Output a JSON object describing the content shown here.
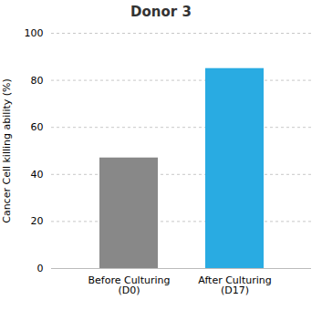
{
  "chart_data": {
    "type": "bar",
    "title": "Donor 3",
    "ylabel": "Cancer Cell killing ability (%)",
    "categories": [
      "Before Culturing\n(D0)",
      "After Culturing\n(D17)"
    ],
    "values": [
      47,
      85
    ],
    "colors": [
      "#888888",
      "#29ABE2"
    ],
    "ylim": [
      0,
      100
    ],
    "yticks": [
      0,
      20,
      40,
      60,
      80,
      100
    ],
    "grid": true
  }
}
